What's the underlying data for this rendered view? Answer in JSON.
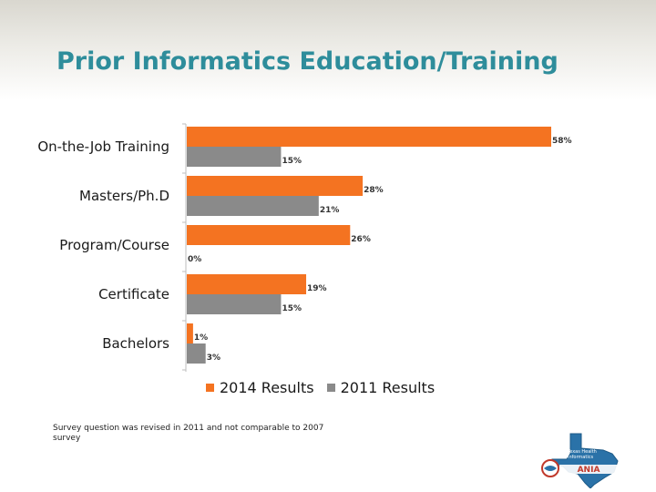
{
  "title": "Prior Informatics Education/Training",
  "footnote": "Survey question was revised in 2011 and not comparable to 2007 survey",
  "colors": {
    "title": "#2e8d9b",
    "series_2014": "#f47321",
    "series_2011": "#8a8a8a"
  },
  "legend": {
    "item_2014": "2014 Results",
    "item_2011": "2011 Results"
  },
  "logo": {
    "name": "texas-map-logo",
    "line1": "Texas Health",
    "line2": "Informatics",
    "acronym": "ANIA"
  },
  "chart_data": {
    "type": "bar",
    "orientation": "horizontal",
    "categories": [
      "On-the-Job Training",
      "Masters/Ph.D",
      "Program/Course",
      "Certificate",
      "Bachelors"
    ],
    "series": [
      {
        "name": "2014 Results",
        "values": [
          58,
          28,
          26,
          19,
          1
        ],
        "labels": [
          "58%",
          "28%",
          "26%",
          "19%",
          "1%"
        ]
      },
      {
        "name": "2011 Results",
        "values": [
          15,
          21,
          0,
          15,
          3
        ],
        "labels": [
          "15%",
          "21%",
          "0%",
          "15%",
          "3%"
        ]
      }
    ],
    "xlim": [
      0,
      58
    ],
    "legend_position": "bottom",
    "grid": false
  }
}
